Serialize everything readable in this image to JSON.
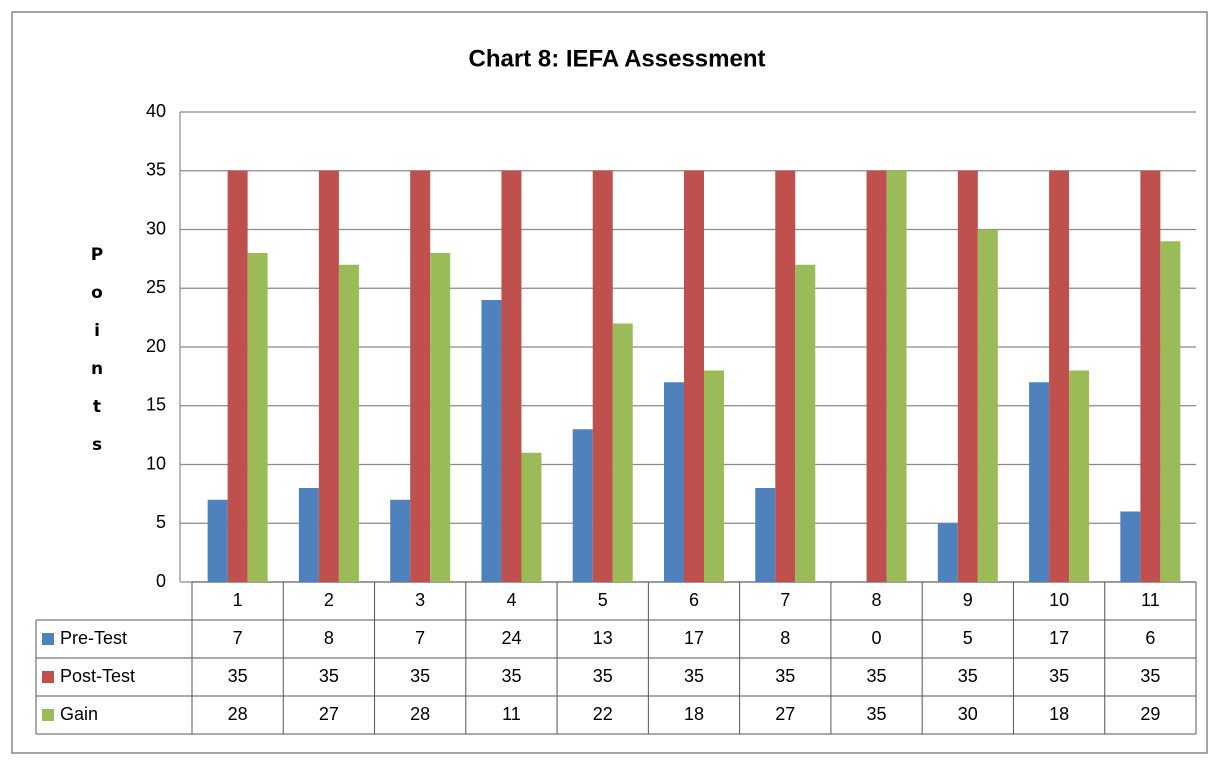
{
  "chart_data": {
    "type": "bar",
    "title": "Chart 8: IEFA Assessment",
    "y_label": "Points",
    "categories": [
      "1",
      "2",
      "3",
      "4",
      "5",
      "6",
      "7",
      "8",
      "9",
      "10",
      "11"
    ],
    "series": [
      {
        "name": "Pre-Test",
        "color": "#4f81bd",
        "values": [
          7,
          8,
          7,
          24,
          13,
          17,
          8,
          0,
          5,
          17,
          6
        ]
      },
      {
        "name": "Post-Test",
        "color": "#c0504d",
        "values": [
          35,
          35,
          35,
          35,
          35,
          35,
          35,
          35,
          35,
          35,
          35
        ]
      },
      {
        "name": "Gain",
        "color": "#9bbb59",
        "values": [
          28,
          27,
          28,
          11,
          22,
          18,
          27,
          35,
          30,
          18,
          29
        ]
      }
    ],
    "ylim": [
      0,
      40
    ],
    "yticks": [
      0,
      5,
      10,
      15,
      20,
      25,
      30,
      35,
      40
    ],
    "grid": true
  }
}
